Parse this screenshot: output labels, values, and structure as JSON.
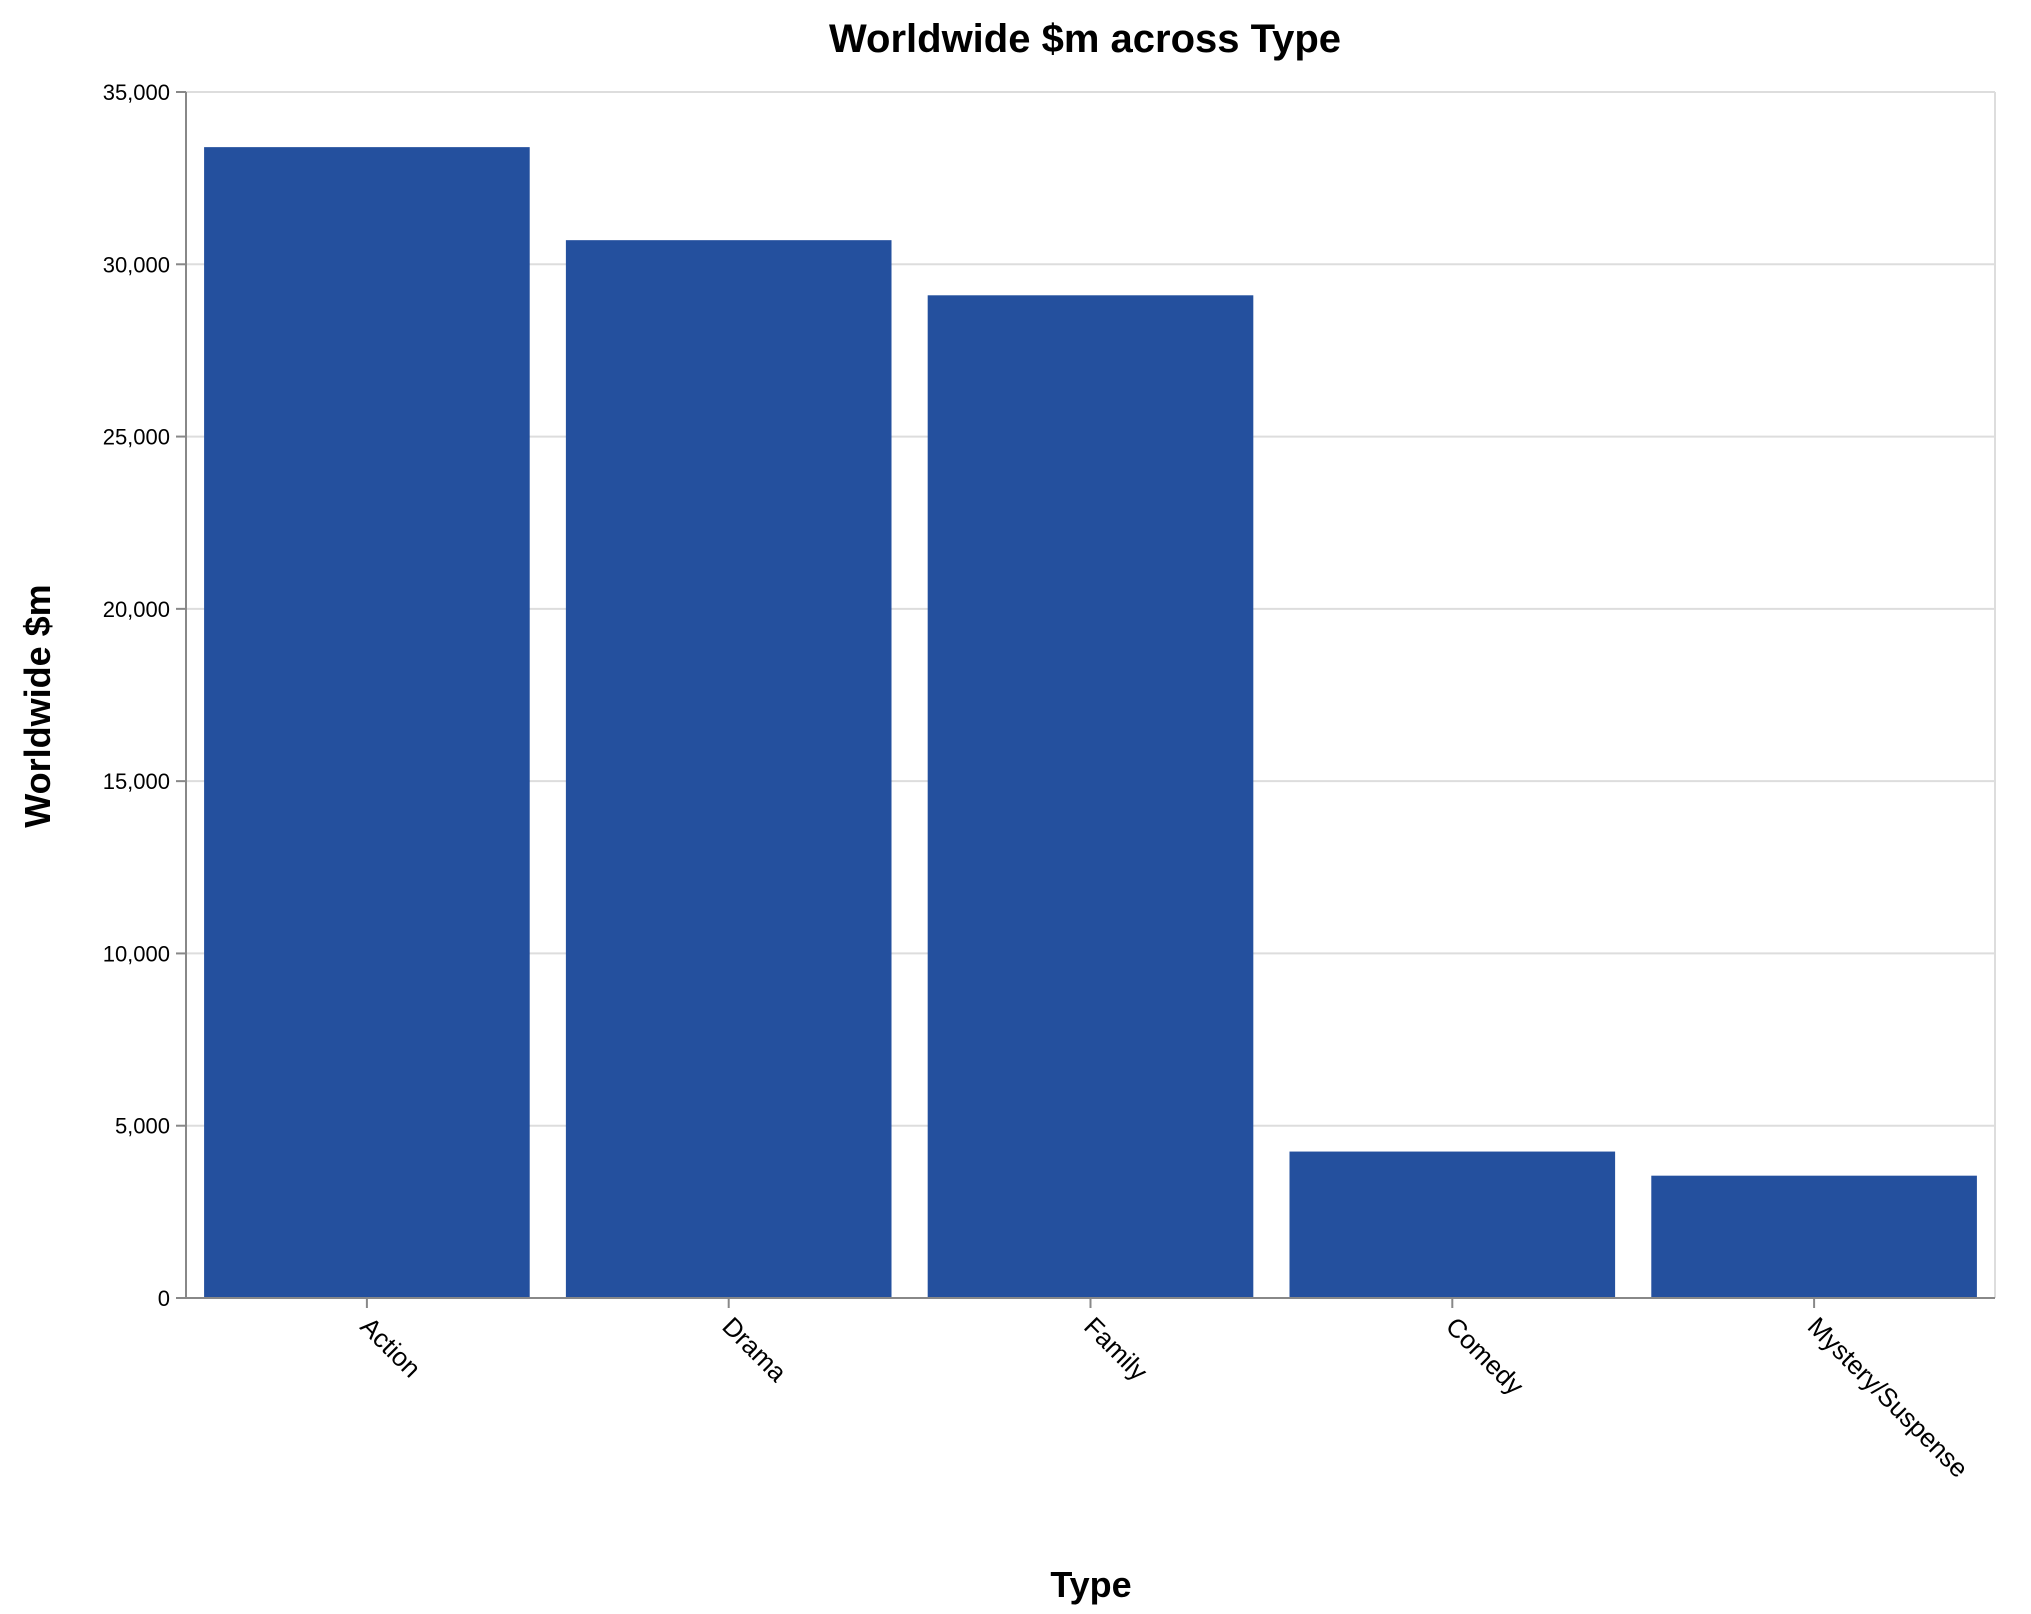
{
  "chart_data": {
    "type": "bar",
    "title": "Worldwide $m across Type",
    "xlabel": "Type",
    "ylabel": "Worldwide $m",
    "categories": [
      "Action",
      "Drama",
      "Family",
      "Comedy",
      "Mystery/Suspense"
    ],
    "values": [
      33400,
      30700,
      29100,
      4250,
      3550
    ],
    "ylim": [
      0,
      35000
    ],
    "yticks": [
      0,
      5000,
      10000,
      15000,
      20000,
      25000,
      30000,
      35000
    ],
    "ytick_labels": [
      "0",
      "5,000",
      "10,000",
      "15,000",
      "20,000",
      "25,000",
      "30,000",
      "35,000"
    ],
    "grid": true,
    "legend": "none",
    "bar_color": "#24509e"
  }
}
